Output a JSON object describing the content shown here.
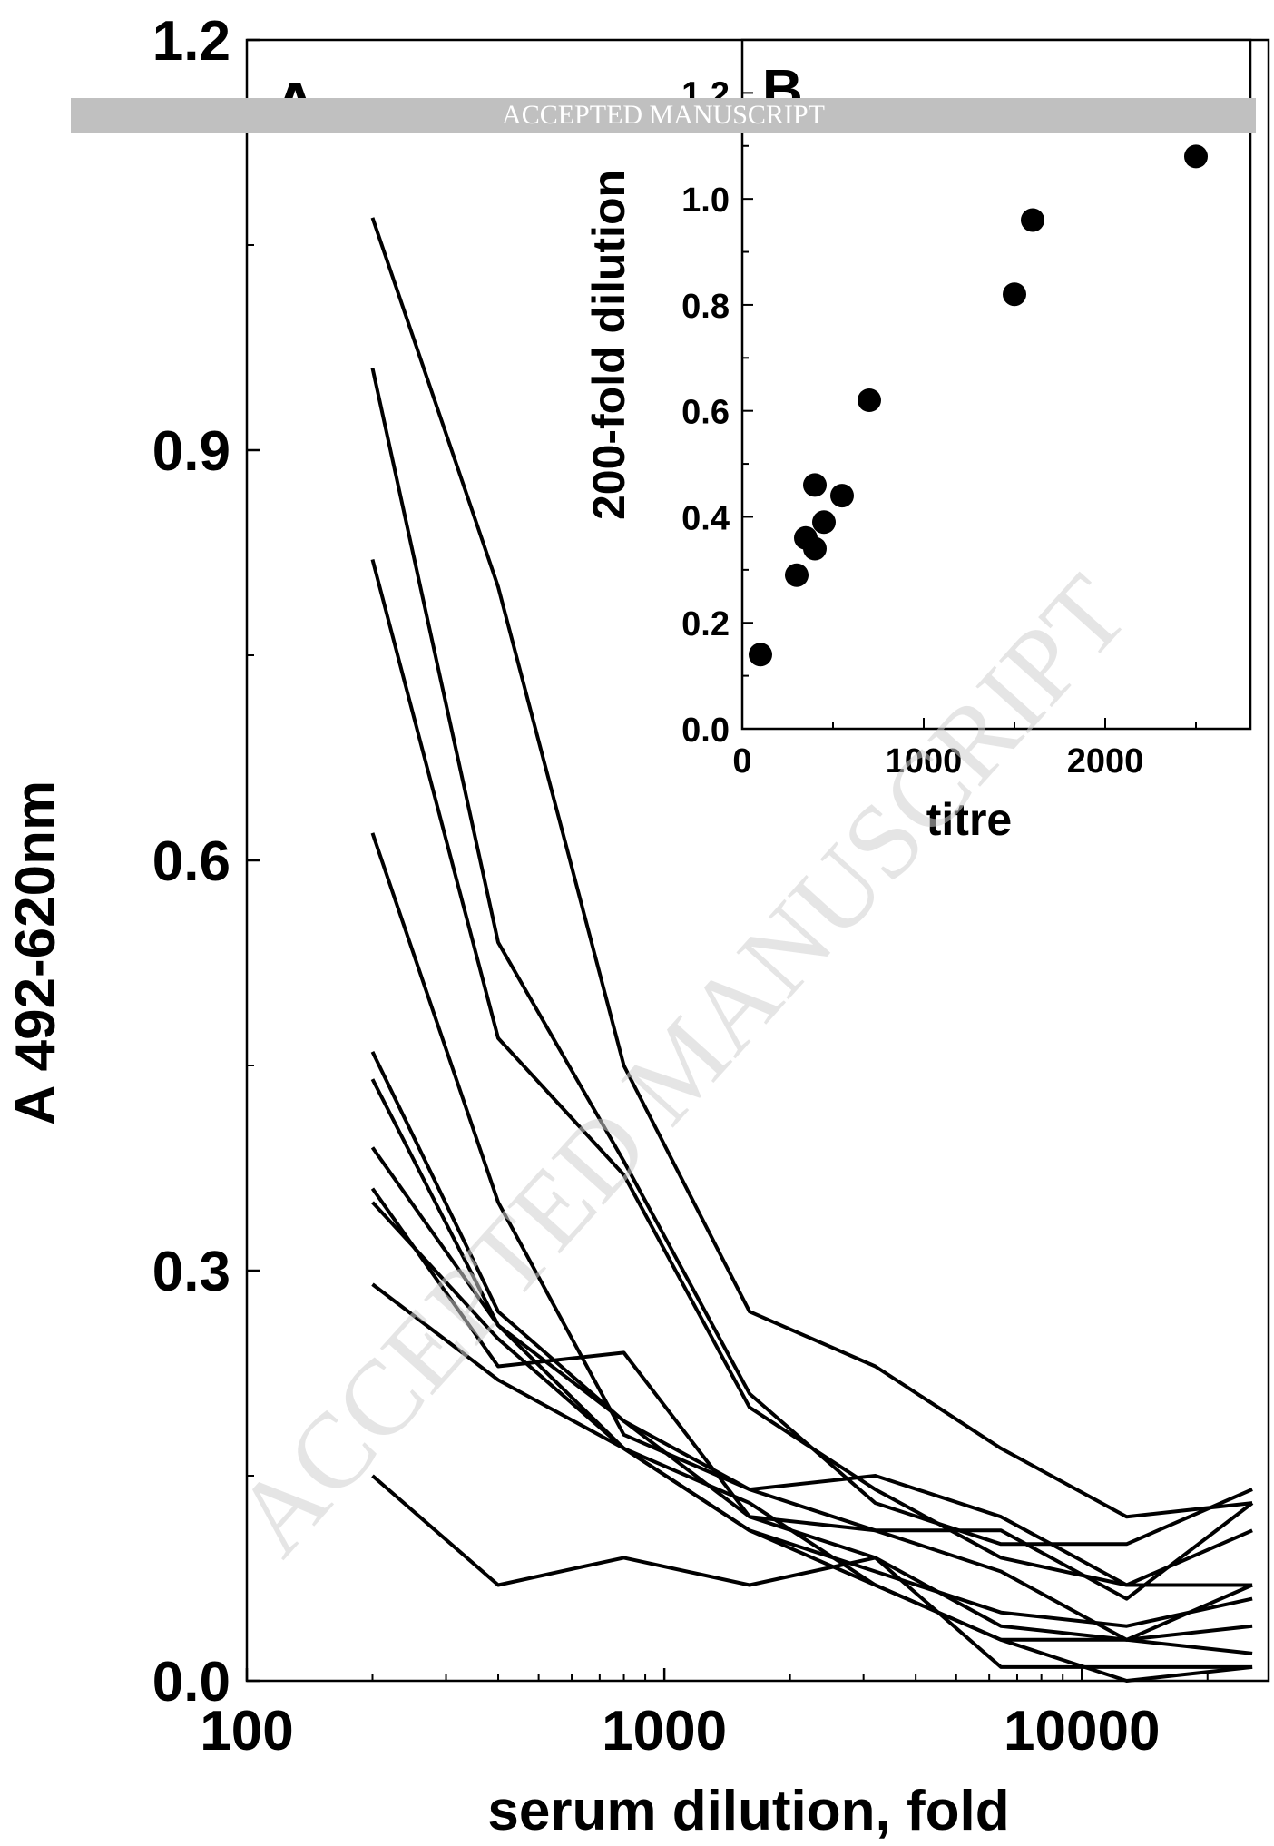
{
  "watermark": {
    "banner_text": "ACCEPTED MANUSCRIPT",
    "diagonal_text": "ACCEPTED MANUSCRIPT",
    "banner_color": "#c0c0c0",
    "text_color": "#d0d0d0"
  },
  "chart_data": [
    {
      "panel": "A",
      "type": "line",
      "xlabel": "serum dilution, fold",
      "ylabel": "A 492-620nm",
      "xscale": "log",
      "xlim": [
        100,
        28000
      ],
      "ylim": [
        0,
        1.2
      ],
      "x_ticks": [
        100,
        1000,
        10000
      ],
      "x_tick_labels": [
        "100",
        "1000",
        "10000"
      ],
      "y_ticks": [
        0.0,
        0.3,
        0.6,
        0.9,
        1.2
      ],
      "y_tick_labels": [
        "0.0",
        "0.3",
        "0.6",
        "0.9",
        "1.2"
      ],
      "line_color": "#000000",
      "x": [
        200,
        400,
        800,
        1600,
        3200,
        6400,
        12800,
        25600
      ],
      "series": [
        {
          "values": [
            1.07,
            0.8,
            0.45,
            0.27,
            0.23,
            0.17,
            0.12,
            0.13
          ]
        },
        {
          "values": [
            0.96,
            0.54,
            0.38,
            0.21,
            0.13,
            0.1,
            0.1,
            0.14
          ]
        },
        {
          "values": [
            0.82,
            0.47,
            0.37,
            0.2,
            0.14,
            0.09,
            0.07,
            0.07
          ]
        },
        {
          "values": [
            0.62,
            0.35,
            0.18,
            0.14,
            0.15,
            0.12,
            0.07,
            0.11
          ]
        },
        {
          "values": [
            0.46,
            0.27,
            0.19,
            0.14,
            0.11,
            0.11,
            0.06,
            0.13
          ]
        },
        {
          "values": [
            0.44,
            0.26,
            0.19,
            0.12,
            0.09,
            0.04,
            0.03,
            0.04
          ]
        },
        {
          "values": [
            0.39,
            0.26,
            0.17,
            0.11,
            0.08,
            0.05,
            0.04,
            0.06
          ]
        },
        {
          "values": [
            0.36,
            0.23,
            0.24,
            0.12,
            0.11,
            0.08,
            0.03,
            0.02
          ]
        },
        {
          "values": [
            0.35,
            0.25,
            0.17,
            0.11,
            0.07,
            0.03,
            0.03,
            0.07
          ]
        },
        {
          "values": [
            0.29,
            0.22,
            0.17,
            0.13,
            0.07,
            0.03,
            0.0,
            0.01
          ]
        },
        {
          "values": [
            0.15,
            0.07,
            0.09,
            0.07,
            0.09,
            0.01,
            0.01,
            0.01
          ]
        }
      ]
    },
    {
      "panel": "B",
      "type": "scatter",
      "xlabel": "titre",
      "ylabel": "200-fold dilution",
      "xlim": [
        0,
        2800
      ],
      "ylim": [
        0,
        1.3
      ],
      "x_ticks": [
        0,
        1000,
        2000
      ],
      "x_tick_labels": [
        "0",
        "1000",
        "2000"
      ],
      "y_ticks": [
        0.0,
        0.2,
        0.4,
        0.6,
        0.8,
        1.0,
        1.2
      ],
      "y_tick_labels": [
        "0.0",
        "0.2",
        "0.4",
        "0.6",
        "0.8",
        "1.0",
        "1.2"
      ],
      "marker_color": "#000000",
      "points": [
        {
          "x": 100,
          "y": 0.14
        },
        {
          "x": 300,
          "y": 0.29
        },
        {
          "x": 350,
          "y": 0.36
        },
        {
          "x": 400,
          "y": 0.34
        },
        {
          "x": 450,
          "y": 0.39
        },
        {
          "x": 400,
          "y": 0.46
        },
        {
          "x": 550,
          "y": 0.44
        },
        {
          "x": 700,
          "y": 0.62
        },
        {
          "x": 1500,
          "y": 0.82
        },
        {
          "x": 1600,
          "y": 0.96
        },
        {
          "x": 2500,
          "y": 1.08
        }
      ]
    }
  ]
}
